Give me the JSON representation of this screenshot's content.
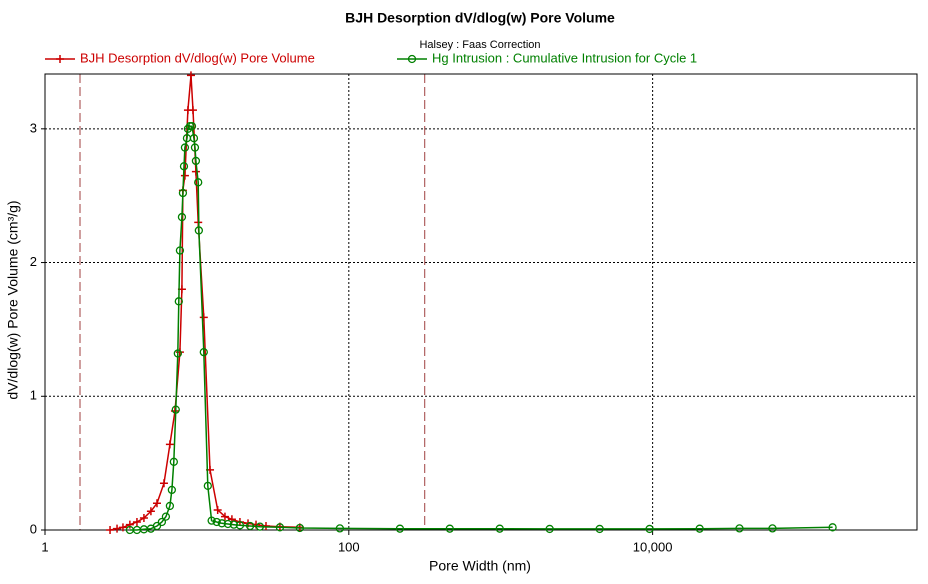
{
  "chart_data": {
    "type": "line",
    "title": "BJH Desorption dV/dlog(w) Pore Volume",
    "subtitle": "Halsey : Faas Correction",
    "x_label": "Pore Width (nm)",
    "y_label": "dV/dlog(w) Pore Volume (cm³/g)",
    "x_scale": "log",
    "xlim": [
      1,
      550000
    ],
    "ylim": [
      0,
      3.41
    ],
    "xticks": [
      1,
      100,
      {
        "value": 10000,
        "label": "10,000"
      }
    ],
    "yticks": [
      0,
      1,
      2,
      3
    ],
    "grid": true,
    "reference_lines": [
      1.7,
      316
    ],
    "reference_color": "#a04040",
    "series": [
      {
        "name": "BJH Desorption dV/dlog(w) Pore Volume",
        "color": "#cc0000",
        "marker": "plus",
        "x": [
          2.68,
          2.98,
          3.26,
          3.62,
          4.03,
          4.48,
          4.98,
          5.46,
          6.07,
          6.64,
          7.17,
          7.73,
          7.97,
          8.09,
          8.34,
          8.73,
          9.14,
          9.42,
          9.85,
          10.2,
          11.1,
          12.2,
          13.7,
          15.3,
          17.0,
          19.2,
          21.7,
          24.5,
          28.5,
          35.2,
          47.6
        ],
        "values": [
          0,
          0.01,
          0.02,
          0.04,
          0.06,
          0.09,
          0.14,
          0.2,
          0.35,
          0.64,
          0.89,
          1.33,
          1.8,
          2.54,
          2.65,
          3.14,
          3.4,
          3.14,
          2.68,
          2.3,
          1.59,
          0.45,
          0.15,
          0.1,
          0.08,
          0.06,
          0.05,
          0.04,
          0.03,
          0.025,
          0.02
        ]
      },
      {
        "name": "Hg Intrusion : Cumulative Intrusion for Cycle 1",
        "color": "#008000",
        "marker": "circle",
        "x": [
          3.62,
          4.03,
          4.48,
          4.98,
          5.46,
          5.88,
          6.25,
          6.64,
          6.84,
          7.05,
          7.26,
          7.49,
          7.6,
          7.73,
          7.97,
          8.09,
          8.22,
          8.34,
          8.6,
          8.73,
          9.0,
          9.28,
          9.56,
          9.71,
          9.85,
          10.2,
          10.3,
          11.1,
          11.8,
          12.5,
          13.5,
          14.6,
          16.0,
          17.5,
          19.2,
          22.4,
          26.0,
          35.2,
          47.6,
          87.3,
          217,
          462,
          985,
          2100,
          4480,
          9550,
          20400,
          37300,
          61500,
          153000
        ],
        "values": [
          0,
          0,
          0.005,
          0.01,
          0.03,
          0.06,
          0.1,
          0.18,
          0.3,
          0.51,
          0.9,
          1.32,
          1.71,
          2.09,
          2.34,
          2.52,
          2.72,
          2.86,
          2.93,
          3.0,
          3.02,
          3.02,
          2.93,
          2.86,
          2.76,
          2.6,
          2.24,
          1.33,
          0.33,
          0.07,
          0.06,
          0.05,
          0.045,
          0.04,
          0.035,
          0.03,
          0.025,
          0.02,
          0.015,
          0.012,
          0.01,
          0.01,
          0.01,
          0.008,
          0.008,
          0.008,
          0.01,
          0.012,
          0.012,
          0.02
        ]
      }
    ]
  }
}
